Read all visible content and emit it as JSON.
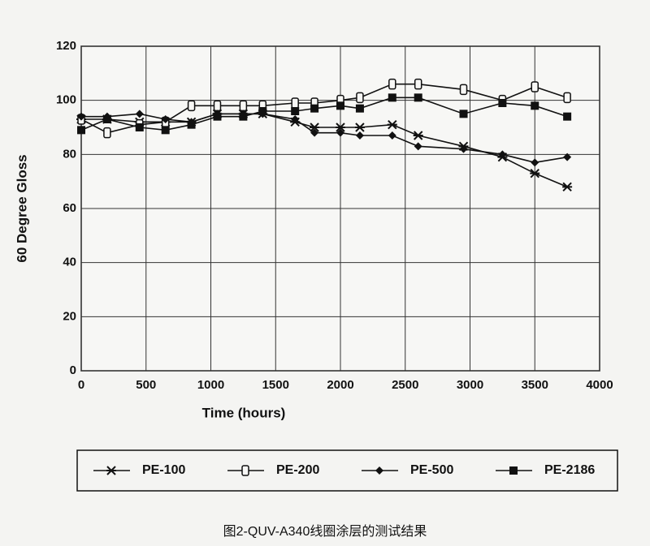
{
  "chart_data": {
    "type": "line",
    "caption": "图2-QUV-A340线圈涂层的测试结果",
    "x_label": "Time (hours)",
    "y_label": "60 Degree Gloss",
    "x": [
      0,
      200,
      450,
      650,
      850,
      1050,
      1250,
      1400,
      1650,
      1800,
      2000,
      2150,
      2400,
      2600,
      2950,
      3250,
      3500,
      3750
    ],
    "series": [
      {
        "name": "PE-100",
        "color": "#111111",
        "marker": "cross",
        "values": [
          93,
          93,
          92,
          92,
          92,
          95,
          95,
          95,
          92,
          90,
          90,
          90,
          91,
          87,
          83,
          79,
          73,
          68
        ]
      },
      {
        "name": "PE-200",
        "color": "#111111",
        "marker": "open-square",
        "values": [
          93,
          88,
          91,
          92,
          98,
          98,
          98,
          98,
          99,
          99,
          100,
          101,
          106,
          106,
          104,
          100,
          105,
          101
        ]
      },
      {
        "name": "PE-500",
        "color": "#111111",
        "marker": "diamond",
        "values": [
          94,
          94,
          95,
          93,
          92,
          95,
          95,
          95,
          93,
          88,
          88,
          87,
          87,
          83,
          82,
          80,
          77,
          79
        ]
      },
      {
        "name": "PE-2186",
        "color": "#111111",
        "marker": "filled-square",
        "values": [
          89,
          93,
          90,
          89,
          91,
          94,
          94,
          96,
          96,
          97,
          98,
          97,
          101,
          101,
          95,
          99,
          98,
          94
        ]
      }
    ],
    "xlim": [
      0,
      4000
    ],
    "xticks": [
      0,
      500,
      1000,
      1500,
      2000,
      2500,
      3000,
      3500,
      4000
    ],
    "ylim": [
      0,
      120
    ],
    "yticks": [
      0,
      20,
      40,
      60,
      80,
      100,
      120
    ],
    "grid": true,
    "legend": "bottom"
  }
}
